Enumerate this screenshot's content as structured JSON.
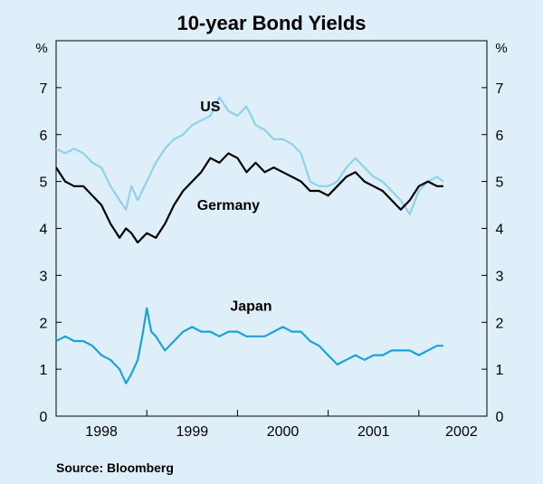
{
  "chart_data": {
    "type": "line",
    "title": "10-year Bond Yields",
    "y_unit_left": "%",
    "y_unit_right": "%",
    "ylim": [
      0,
      8
    ],
    "yticks": [
      0,
      1,
      2,
      3,
      4,
      5,
      6,
      7
    ],
    "xlim": [
      1997.5,
      2002.25
    ],
    "xtick_labels": [
      {
        "label": "1998",
        "center": 1998.0
      },
      {
        "label": "1999",
        "center": 1999.0
      },
      {
        "label": "2000",
        "center": 2000.0
      },
      {
        "label": "2001",
        "center": 2001.0
      },
      {
        "label": "2002",
        "center": 2001.97
      }
    ],
    "year_boundaries": [
      1998.5,
      1999.5,
      2000.5,
      2001.5
    ],
    "grid": false,
    "legend": "none",
    "source": "Source: Bloomberg",
    "series": [
      {
        "name": "US",
        "color": "#8fd0ee",
        "x": [
          1997.5,
          1997.6,
          1997.7,
          1997.8,
          1997.9,
          1998.0,
          1998.1,
          1998.2,
          1998.27,
          1998.33,
          1998.4,
          1998.5,
          1998.6,
          1998.7,
          1998.8,
          1998.9,
          1999.0,
          1999.1,
          1999.2,
          1999.3,
          1999.4,
          1999.5,
          1999.6,
          1999.7,
          1999.8,
          1999.9,
          2000.0,
          2000.1,
          2000.2,
          2000.3,
          2000.4,
          2000.5,
          2000.6,
          2000.7,
          2000.8,
          2000.9,
          2001.0,
          2001.1,
          2001.2,
          2001.3,
          2001.4,
          2001.5,
          2001.6,
          2001.7,
          2001.77
        ],
        "values": [
          5.7,
          5.6,
          5.7,
          5.6,
          5.4,
          5.3,
          4.9,
          4.6,
          4.4,
          4.9,
          4.6,
          5.0,
          5.4,
          5.7,
          5.9,
          6.0,
          6.2,
          6.3,
          6.4,
          6.8,
          6.5,
          6.4,
          6.6,
          6.2,
          6.1,
          5.9,
          5.9,
          5.8,
          5.6,
          5.0,
          4.9,
          4.9,
          5.0,
          5.3,
          5.5,
          5.3,
          5.1,
          5.0,
          4.8,
          4.6,
          4.3,
          4.8,
          5.0,
          5.1,
          5.0
        ]
      },
      {
        "name": "Germany",
        "color": "#000000",
        "x": [
          1997.5,
          1997.6,
          1997.7,
          1997.8,
          1997.9,
          1998.0,
          1998.1,
          1998.2,
          1998.27,
          1998.33,
          1998.4,
          1998.45,
          1998.5,
          1998.6,
          1998.7,
          1998.8,
          1998.9,
          1999.0,
          1999.1,
          1999.2,
          1999.3,
          1999.4,
          1999.5,
          1999.6,
          1999.7,
          1999.8,
          1999.9,
          2000.0,
          2000.1,
          2000.2,
          2000.3,
          2000.4,
          2000.5,
          2000.6,
          2000.7,
          2000.8,
          2000.9,
          2001.0,
          2001.1,
          2001.2,
          2001.3,
          2001.4,
          2001.5,
          2001.6,
          2001.7,
          2001.77
        ],
        "values": [
          5.3,
          5.0,
          4.9,
          4.9,
          4.7,
          4.5,
          4.1,
          3.8,
          4.0,
          3.9,
          3.7,
          3.8,
          3.9,
          3.8,
          4.1,
          4.5,
          4.8,
          5.0,
          5.2,
          5.5,
          5.4,
          5.6,
          5.5,
          5.2,
          5.4,
          5.2,
          5.3,
          5.2,
          5.1,
          5.0,
          4.8,
          4.8,
          4.7,
          4.9,
          5.1,
          5.2,
          5.0,
          4.9,
          4.8,
          4.6,
          4.4,
          4.6,
          4.9,
          5.0,
          4.9,
          4.9
        ]
      },
      {
        "name": "Japan",
        "color": "#1ba3d9",
        "x": [
          1997.5,
          1997.6,
          1997.7,
          1997.8,
          1997.9,
          1998.0,
          1998.1,
          1998.2,
          1998.27,
          1998.33,
          1998.4,
          1998.45,
          1998.5,
          1998.55,
          1998.6,
          1998.7,
          1998.8,
          1998.9,
          1999.0,
          1999.1,
          1999.2,
          1999.3,
          1999.4,
          1999.5,
          1999.6,
          1999.7,
          1999.8,
          1999.9,
          2000.0,
          2000.1,
          2000.2,
          2000.3,
          2000.4,
          2000.5,
          2000.6,
          2000.7,
          2000.8,
          2000.9,
          2001.0,
          2001.1,
          2001.2,
          2001.3,
          2001.4,
          2001.5,
          2001.6,
          2001.7,
          2001.77
        ],
        "values": [
          1.6,
          1.7,
          1.6,
          1.6,
          1.5,
          1.3,
          1.2,
          1.0,
          0.7,
          0.9,
          1.2,
          1.7,
          2.3,
          1.8,
          1.7,
          1.4,
          1.6,
          1.8,
          1.9,
          1.8,
          1.8,
          1.7,
          1.8,
          1.8,
          1.7,
          1.7,
          1.7,
          1.8,
          1.9,
          1.8,
          1.8,
          1.6,
          1.5,
          1.3,
          1.1,
          1.2,
          1.3,
          1.2,
          1.3,
          1.3,
          1.4,
          1.4,
          1.4,
          1.3,
          1.4,
          1.5,
          1.5
        ]
      }
    ],
    "series_labels": [
      {
        "text": "US",
        "x": 1999.2,
        "y": 6.5
      },
      {
        "text": "Germany",
        "x": 1999.4,
        "y": 4.4
      },
      {
        "text": "Japan",
        "x": 1999.65,
        "y": 2.25
      }
    ]
  }
}
